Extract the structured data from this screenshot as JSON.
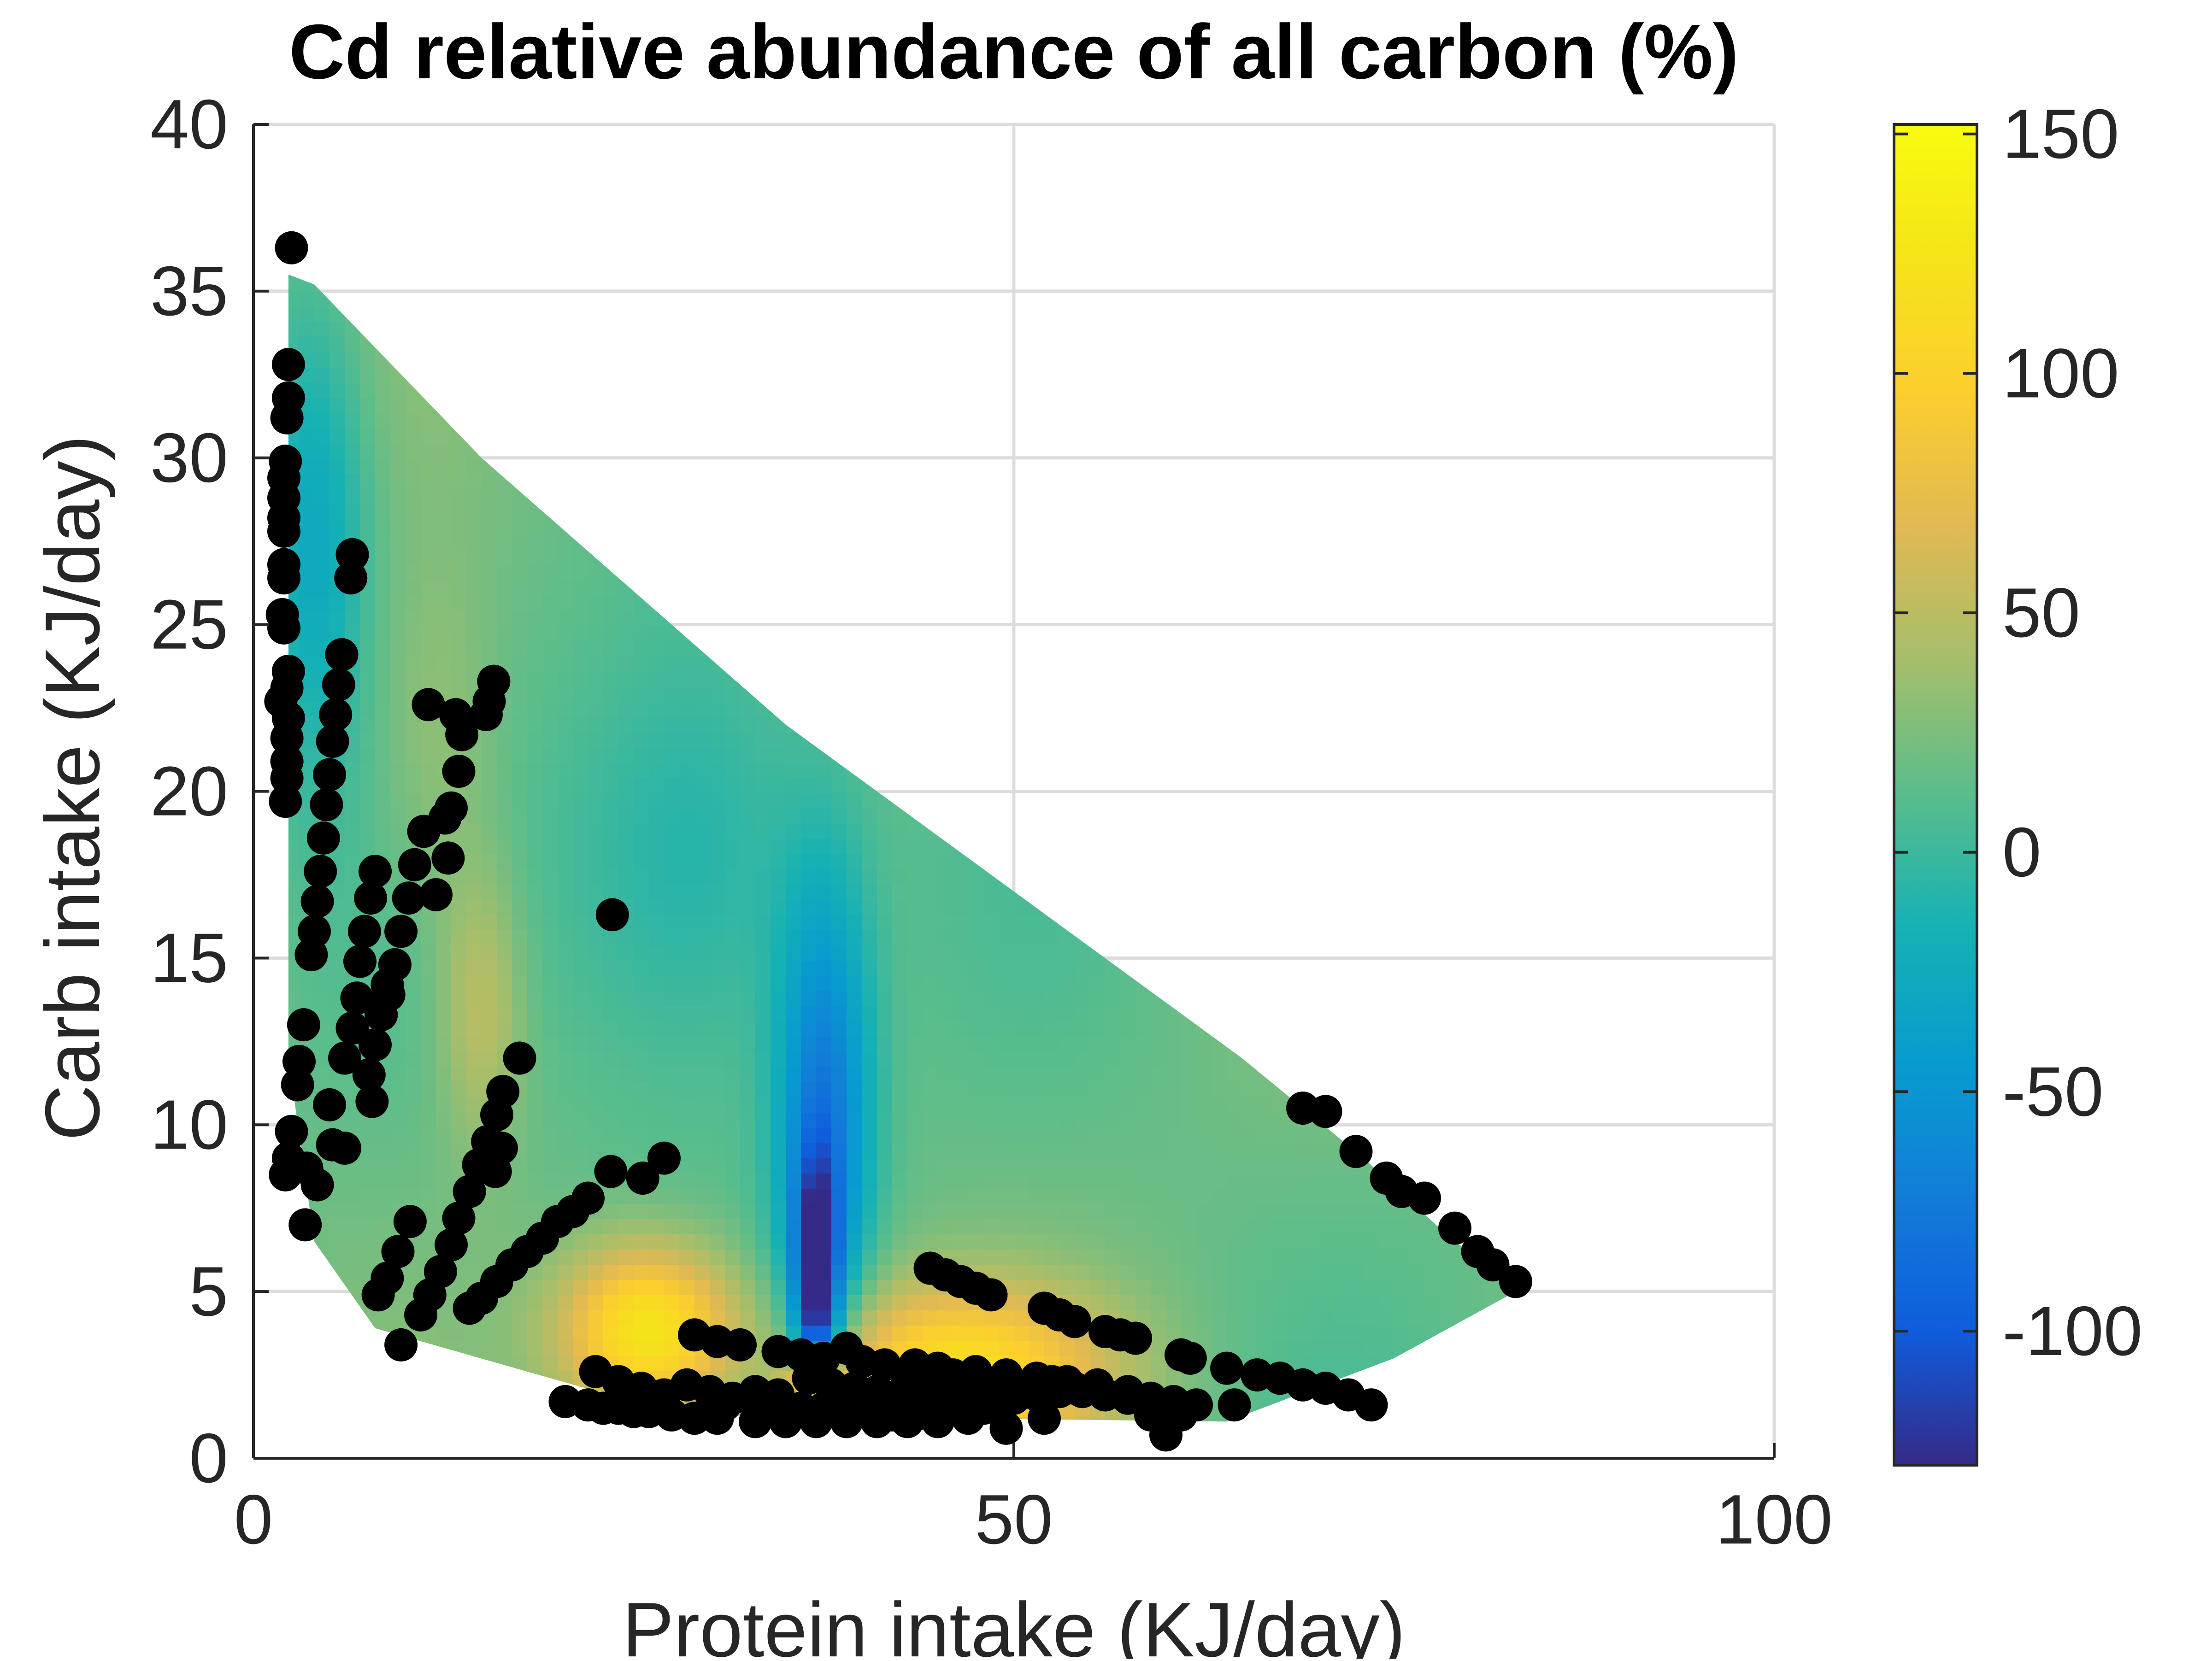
{
  "chart_data": {
    "type": "heatmap",
    "title": "Cd relative abundance of all carbon (%)",
    "xlabel": "Protein intake (KJ/day)",
    "ylabel": "Carb intake (KJ/day)",
    "xlim": [
      0,
      100
    ],
    "ylim": [
      0,
      40
    ],
    "x_ticks": [
      "0",
      "50",
      "100"
    ],
    "y_ticks": [
      "0",
      "5",
      "10",
      "15",
      "20",
      "25",
      "30",
      "35",
      "40"
    ],
    "grid": true,
    "colorbar": {
      "range": [
        -128,
        152
      ],
      "ticks": [
        "150",
        "100",
        "50",
        "0",
        "-50",
        "-100"
      ],
      "colormap": "parula"
    },
    "surface_region": {
      "description_free": true,
      "boundary": [
        [
          2.3,
          35.5
        ],
        [
          4,
          35.2
        ],
        [
          15,
          30
        ],
        [
          35,
          22
        ],
        [
          56,
          15
        ],
        [
          65,
          12
        ],
        [
          73,
          9
        ],
        [
          78,
          6.9
        ],
        [
          83,
          5
        ],
        [
          75,
          3
        ],
        [
          64,
          1.1
        ],
        [
          28,
          1.3
        ],
        [
          18,
          2.6
        ],
        [
          8,
          3.9
        ],
        [
          4,
          6.5
        ],
        [
          2.3,
          12
        ]
      ]
    },
    "surface_features": [
      {
        "x": 26,
        "y": 3.8,
        "value": 130,
        "sx": 4,
        "sy": 1.8
      },
      {
        "x": 37,
        "y": 2.0,
        "value": 140,
        "sx": 1.5,
        "sy": 0.8
      },
      {
        "x": 46,
        "y": 2.6,
        "value": 110,
        "sx": 7,
        "sy": 1.8
      },
      {
        "x": 15,
        "y": 13.5,
        "value": 55,
        "sx": 2,
        "sy": 3
      },
      {
        "x": 12,
        "y": 21,
        "value": 40,
        "sx": 3,
        "sy": 4
      },
      {
        "x": 37,
        "y": 5,
        "value": -125,
        "sx": 1.0,
        "sy": 2.5
      },
      {
        "x": 37.5,
        "y": 10,
        "value": -75,
        "sx": 2.2,
        "sy": 5
      },
      {
        "x": 4,
        "y": 28,
        "value": -30,
        "sx": 2.5,
        "sy": 5
      },
      {
        "x": 29,
        "y": 18,
        "value": -20,
        "sx": 6,
        "sy": 5
      }
    ],
    "points": [
      [
        2.5,
        36.3
      ],
      [
        2.3,
        32.8
      ],
      [
        2.3,
        31.8
      ],
      [
        2.2,
        31.2
      ],
      [
        2.1,
        29.9
      ],
      [
        2.0,
        29.4
      ],
      [
        2.0,
        28.8
      ],
      [
        2.0,
        28.2
      ],
      [
        2.0,
        27.8
      ],
      [
        2.0,
        26.8
      ],
      [
        2.0,
        26.4
      ],
      [
        1.9,
        25.3
      ],
      [
        2.0,
        24.9
      ],
      [
        2.3,
        23.6
      ],
      [
        2.2,
        23.1
      ],
      [
        1.8,
        22.7
      ],
      [
        2.3,
        22.2
      ],
      [
        2.2,
        21.6
      ],
      [
        2.2,
        20.9
      ],
      [
        2.2,
        20.4
      ],
      [
        2.1,
        19.7
      ],
      [
        6.5,
        27.1
      ],
      [
        6.4,
        26.4
      ],
      [
        5.8,
        24.1
      ],
      [
        5.6,
        23.2
      ],
      [
        5.4,
        22.3
      ],
      [
        5.2,
        21.5
      ],
      [
        5.0,
        20.5
      ],
      [
        4.8,
        19.6
      ],
      [
        4.6,
        18.6
      ],
      [
        4.4,
        17.6
      ],
      [
        4.2,
        16.7
      ],
      [
        4.0,
        15.8
      ],
      [
        3.8,
        15.1
      ],
      [
        8.0,
        17.6
      ],
      [
        7.7,
        16.8
      ],
      [
        7.3,
        15.8
      ],
      [
        7.0,
        14.9
      ],
      [
        6.8,
        13.8
      ],
      [
        6.5,
        12.9
      ],
      [
        6.0,
        12.0
      ],
      [
        8.8,
        14.2
      ],
      [
        8.4,
        13.3
      ],
      [
        8.0,
        12.4
      ],
      [
        7.6,
        11.5
      ],
      [
        7.8,
        10.7
      ],
      [
        11.2,
        18.8
      ],
      [
        10.6,
        17.8
      ],
      [
        10.2,
        16.8
      ],
      [
        9.7,
        15.8
      ],
      [
        9.3,
        14.8
      ],
      [
        8.9,
        13.9
      ],
      [
        12.6,
        19.2
      ],
      [
        12.8,
        18.0
      ],
      [
        12.0,
        16.9
      ],
      [
        13.5,
        20.6
      ],
      [
        13.7,
        21.7
      ],
      [
        11.5,
        22.6
      ],
      [
        13.0,
        19.5
      ],
      [
        15.8,
        23.3
      ],
      [
        15.5,
        22.7
      ],
      [
        15.3,
        22.3
      ],
      [
        13.3,
        22.3
      ],
      [
        3.3,
        13.0
      ],
      [
        3.0,
        11.9
      ],
      [
        2.9,
        11.2
      ],
      [
        5.0,
        10.6
      ],
      [
        5.2,
        9.4
      ],
      [
        2.5,
        9.8
      ],
      [
        2.3,
        9.0
      ],
      [
        2.1,
        8.5
      ],
      [
        3.5,
        8.7
      ],
      [
        4.2,
        8.2
      ],
      [
        3.4,
        7.0
      ],
      [
        6.0,
        9.3
      ],
      [
        17.5,
        12.0
      ],
      [
        16.4,
        11.0
      ],
      [
        16.0,
        10.3
      ],
      [
        15.4,
        9.5
      ],
      [
        14.8,
        8.8
      ],
      [
        14.2,
        8.0
      ],
      [
        13.5,
        7.2
      ],
      [
        13.0,
        6.4
      ],
      [
        12.3,
        5.6
      ],
      [
        11.6,
        4.9
      ],
      [
        11.0,
        4.3
      ],
      [
        15.9,
        8.6
      ],
      [
        10.3,
        7.1
      ],
      [
        9.5,
        6.2
      ],
      [
        8.8,
        5.4
      ],
      [
        8.2,
        4.9
      ],
      [
        16.3,
        9.3
      ],
      [
        14.2,
        4.5
      ],
      [
        15.0,
        4.8
      ],
      [
        16.0,
        5.3
      ],
      [
        17.0,
        5.8
      ],
      [
        18.0,
        6.2
      ],
      [
        19.0,
        6.6
      ],
      [
        20.0,
        7.1
      ],
      [
        21.0,
        7.4
      ],
      [
        22.0,
        7.8
      ],
      [
        23.5,
        8.6
      ],
      [
        27.0,
        9.0
      ],
      [
        25.6,
        8.4
      ],
      [
        9.7,
        3.4
      ],
      [
        23.6,
        16.3
      ],
      [
        44.5,
        5.7
      ],
      [
        45.5,
        5.5
      ],
      [
        46.5,
        5.3
      ],
      [
        47.5,
        5.1
      ],
      [
        48.5,
        4.9
      ],
      [
        52.0,
        4.5
      ],
      [
        53.0,
        4.3
      ],
      [
        54.0,
        4.1
      ],
      [
        56.0,
        3.8
      ],
      [
        57.0,
        3.7
      ],
      [
        58.0,
        3.6
      ],
      [
        61.0,
        3.1
      ],
      [
        61.6,
        3.0
      ],
      [
        64.0,
        2.7
      ],
      [
        66.0,
        2.5
      ],
      [
        67.5,
        2.4
      ],
      [
        69.0,
        2.2
      ],
      [
        70.5,
        2.1
      ],
      [
        72.0,
        1.9
      ],
      [
        73.5,
        1.6
      ],
      [
        59.0,
        1.3
      ],
      [
        64.5,
        1.6
      ],
      [
        61.0,
        1.3
      ],
      [
        60.0,
        0.7
      ],
      [
        49.5,
        0.9
      ],
      [
        52.0,
        1.2
      ],
      [
        69.0,
        10.5
      ],
      [
        70.5,
        10.4
      ],
      [
        72.5,
        9.2
      ],
      [
        74.5,
        8.4
      ],
      [
        75.5,
        8.0
      ],
      [
        77.0,
        7.8
      ],
      [
        79.0,
        6.9
      ],
      [
        80.5,
        6.2
      ],
      [
        81.5,
        5.8
      ],
      [
        83.0,
        5.3
      ],
      [
        29.0,
        3.7
      ],
      [
        30.5,
        3.5
      ],
      [
        32.0,
        3.4
      ],
      [
        34.5,
        3.2
      ],
      [
        36.0,
        3.1
      ],
      [
        37.5,
        3.0
      ],
      [
        39.0,
        3.3
      ],
      [
        40.0,
        2.9
      ],
      [
        41.5,
        2.8
      ],
      [
        43.5,
        2.8
      ],
      [
        45.0,
        2.7
      ],
      [
        47.5,
        2.6
      ],
      [
        49.5,
        2.5
      ],
      [
        51.5,
        2.4
      ],
      [
        53.5,
        2.3
      ],
      [
        55.5,
        2.2
      ],
      [
        57.5,
        2.0
      ],
      [
        20.5,
        1.7
      ],
      [
        22.0,
        1.6
      ],
      [
        23.0,
        1.5
      ],
      [
        24.0,
        1.5
      ],
      [
        25.0,
        1.4
      ],
      [
        26.0,
        1.4
      ],
      [
        27.5,
        1.3
      ],
      [
        29.0,
        1.2
      ],
      [
        30.5,
        1.2
      ],
      [
        33.0,
        1.1
      ],
      [
        35.0,
        1.1
      ],
      [
        37.0,
        1.1
      ],
      [
        39.0,
        1.1
      ],
      [
        41.0,
        1.1
      ],
      [
        43.0,
        1.1
      ],
      [
        45.0,
        1.1
      ],
      [
        47.0,
        1.2
      ],
      [
        22.5,
        2.6
      ],
      [
        24.0,
        2.3
      ],
      [
        25.5,
        2.1
      ],
      [
        27.0,
        1.9
      ],
      [
        28.5,
        2.2
      ],
      [
        30.0,
        2.0
      ],
      [
        31.5,
        1.8
      ],
      [
        33.0,
        1.7
      ],
      [
        34.5,
        1.6
      ],
      [
        36.0,
        1.5
      ],
      [
        37.5,
        1.5
      ],
      [
        39.0,
        1.4
      ],
      [
        40.5,
        1.4
      ],
      [
        42.0,
        1.3
      ],
      [
        43.5,
        1.3
      ],
      [
        45.0,
        1.3
      ],
      [
        46.5,
        1.4
      ],
      [
        48.0,
        1.5
      ],
      [
        36.5,
        2.4
      ],
      [
        38.0,
        2.2
      ],
      [
        39.5,
        2.1
      ],
      [
        41.0,
        2.0
      ],
      [
        42.5,
        1.9
      ],
      [
        44.0,
        1.8
      ],
      [
        45.5,
        1.8
      ],
      [
        47.0,
        1.7
      ],
      [
        48.5,
        1.7
      ],
      [
        50.0,
        1.8
      ],
      [
        51.5,
        1.9
      ],
      [
        53.0,
        2.0
      ],
      [
        54.5,
        2.0
      ],
      [
        56.0,
        1.9
      ],
      [
        57.5,
        1.8
      ],
      [
        59.0,
        1.8
      ],
      [
        60.5,
        1.7
      ],
      [
        62.0,
        1.6
      ],
      [
        48.0,
        2.1
      ],
      [
        49.5,
        2.2
      ],
      [
        51.0,
        2.2
      ],
      [
        52.5,
        2.3
      ],
      [
        54.0,
        2.1
      ],
      [
        55.5,
        2.1
      ],
      [
        43.0,
        2.3
      ],
      [
        44.5,
        2.4
      ],
      [
        46.0,
        2.5
      ],
      [
        33.0,
        2.0
      ],
      [
        34.5,
        1.9
      ],
      [
        31.0,
        1.6
      ],
      [
        38.5,
        1.8
      ]
    ]
  }
}
